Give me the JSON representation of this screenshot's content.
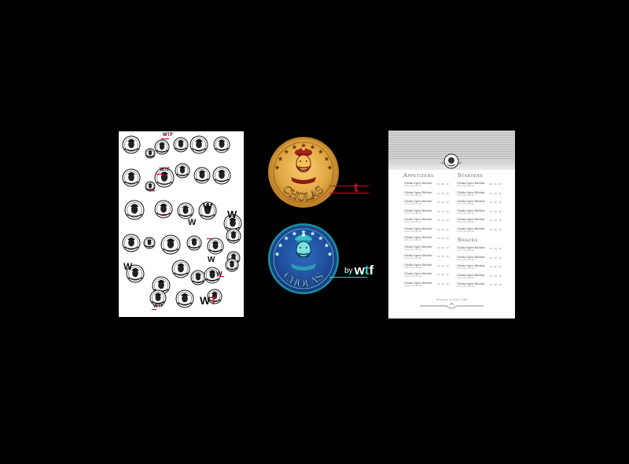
{
  "sketch": {
    "wtf_top_w": "W",
    "wtf_top_t": "T",
    "wtf_top_f": "F",
    "wtf_mid_w": "W",
    "wtf_mid_t": "T",
    "wtf_mid_f": "F"
  },
  "logos": {
    "brand": "CHOLAS",
    "by": "by",
    "w": "w",
    "t": "t",
    "f": "f",
    "gold_color": "#e0a541",
    "blue_color": "#1f4c9a",
    "gold_line": "#c8102e"
  },
  "menu": {
    "heading_left": "Appetizers",
    "heading_right": "Starters",
    "heading_right2": "Snacks",
    "item_name": "Cholas Spice Kitchen",
    "item_desc": "Some spice Brinks",
    "price": "$0 · $0 · $0",
    "footnote": "*Prices are exclusive of GST"
  }
}
